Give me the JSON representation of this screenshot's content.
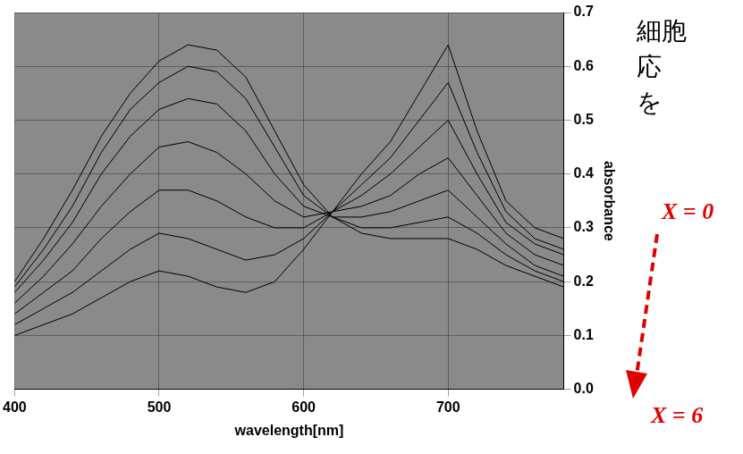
{
  "chart_data": {
    "type": "line",
    "x_label": "wavelength[nm]",
    "y_label": "absorbance",
    "x": [
      400,
      420,
      440,
      460,
      480,
      500,
      520,
      540,
      560,
      580,
      600,
      620,
      640,
      660,
      680,
      700,
      720,
      740,
      760,
      780
    ],
    "series": [
      {
        "color": "#000000",
        "values": [
          0.1,
          0.12,
          0.14,
          0.17,
          0.2,
          0.22,
          0.21,
          0.19,
          0.18,
          0.2,
          0.26,
          0.33,
          0.4,
          0.46,
          0.55,
          0.64,
          0.48,
          0.35,
          0.3,
          0.28
        ]
      },
      {
        "color": "#000000",
        "values": [
          0.12,
          0.15,
          0.18,
          0.22,
          0.26,
          0.29,
          0.28,
          0.26,
          0.24,
          0.25,
          0.28,
          0.33,
          0.38,
          0.43,
          0.5,
          0.57,
          0.44,
          0.33,
          0.28,
          0.26
        ]
      },
      {
        "color": "#000000",
        "values": [
          0.14,
          0.18,
          0.22,
          0.28,
          0.33,
          0.37,
          0.37,
          0.35,
          0.32,
          0.3,
          0.3,
          0.33,
          0.36,
          0.4,
          0.45,
          0.5,
          0.4,
          0.31,
          0.27,
          0.25
        ]
      },
      {
        "color": "#000000",
        "values": [
          0.16,
          0.21,
          0.27,
          0.34,
          0.4,
          0.45,
          0.46,
          0.44,
          0.4,
          0.35,
          0.32,
          0.33,
          0.34,
          0.36,
          0.4,
          0.43,
          0.36,
          0.29,
          0.25,
          0.23
        ]
      },
      {
        "color": "#000000",
        "values": [
          0.18,
          0.24,
          0.31,
          0.4,
          0.47,
          0.52,
          0.54,
          0.53,
          0.48,
          0.4,
          0.34,
          0.32,
          0.32,
          0.33,
          0.35,
          0.37,
          0.32,
          0.27,
          0.23,
          0.21
        ]
      },
      {
        "color": "#000000",
        "values": [
          0.19,
          0.26,
          0.34,
          0.44,
          0.52,
          0.57,
          0.6,
          0.59,
          0.54,
          0.45,
          0.36,
          0.32,
          0.3,
          0.3,
          0.31,
          0.32,
          0.29,
          0.25,
          0.22,
          0.2
        ]
      },
      {
        "color": "#000000",
        "values": [
          0.2,
          0.28,
          0.37,
          0.47,
          0.55,
          0.61,
          0.64,
          0.63,
          0.58,
          0.48,
          0.38,
          0.32,
          0.29,
          0.28,
          0.28,
          0.28,
          0.26,
          0.23,
          0.21,
          0.19
        ]
      }
    ],
    "xlim": [
      400,
      780
    ],
    "xticks": [
      400,
      500,
      600,
      700
    ],
    "ylim": [
      0,
      0.7
    ],
    "yticks": [
      {
        "value": 0,
        "label": "0.0"
      },
      0.1,
      0.2,
      0.3,
      0.4,
      0.5,
      0.6,
      0.7
    ],
    "grid": true,
    "annotations": [
      "細胞",
      "応",
      "を",
      "X = 0",
      "X = 6"
    ]
  }
}
